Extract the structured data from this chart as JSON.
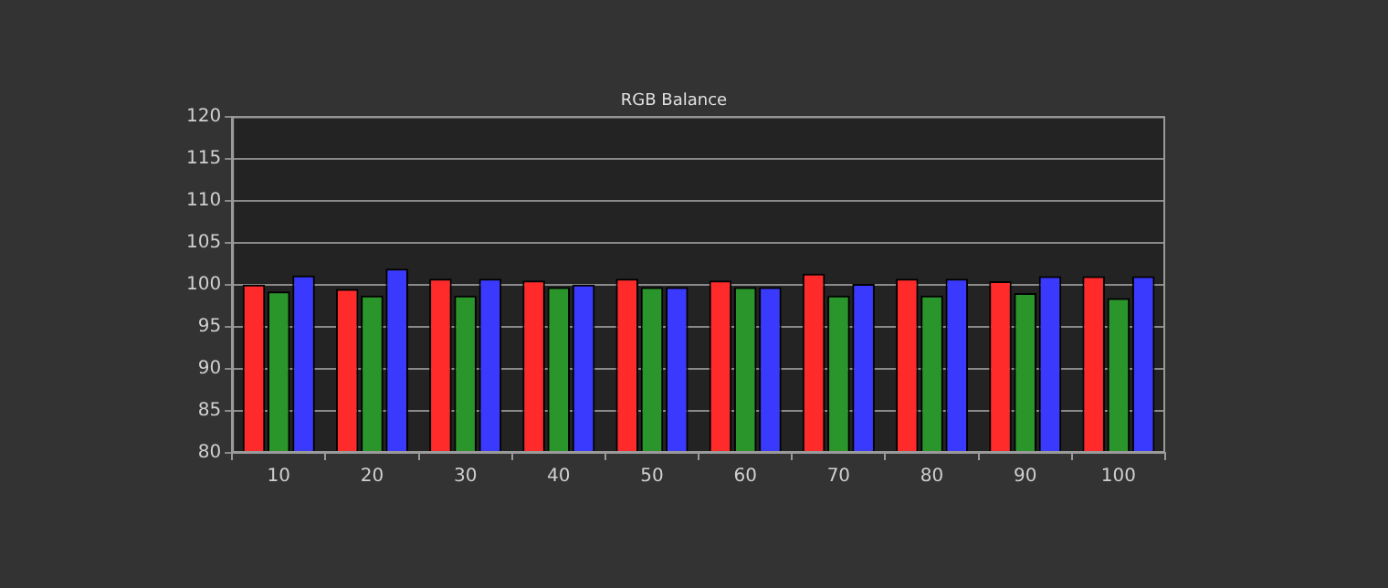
{
  "chart_data": {
    "type": "bar",
    "title": "RGB Balance",
    "categories": [
      "10",
      "20",
      "30",
      "40",
      "50",
      "60",
      "70",
      "80",
      "90",
      "100"
    ],
    "series": [
      {
        "color": "#ff2a2a",
        "values": [
          100.0,
          99.5,
          100.7,
          100.5,
          100.7,
          100.5,
          101.3,
          100.7,
          100.4,
          101.0
        ]
      },
      {
        "color": "#2a952a",
        "values": [
          99.2,
          98.7,
          98.7,
          99.7,
          99.7,
          99.7,
          98.7,
          98.7,
          99.0,
          98.4
        ]
      },
      {
        "color": "#3a3aff",
        "values": [
          101.1,
          101.9,
          100.7,
          100.0,
          99.7,
          99.7,
          100.1,
          100.7,
          101.0,
          101.0
        ]
      }
    ],
    "ylim": [
      80,
      120
    ],
    "yticks": [
      80,
      85,
      90,
      95,
      100,
      105,
      110,
      115,
      120
    ],
    "grid": "y",
    "legend": false
  }
}
